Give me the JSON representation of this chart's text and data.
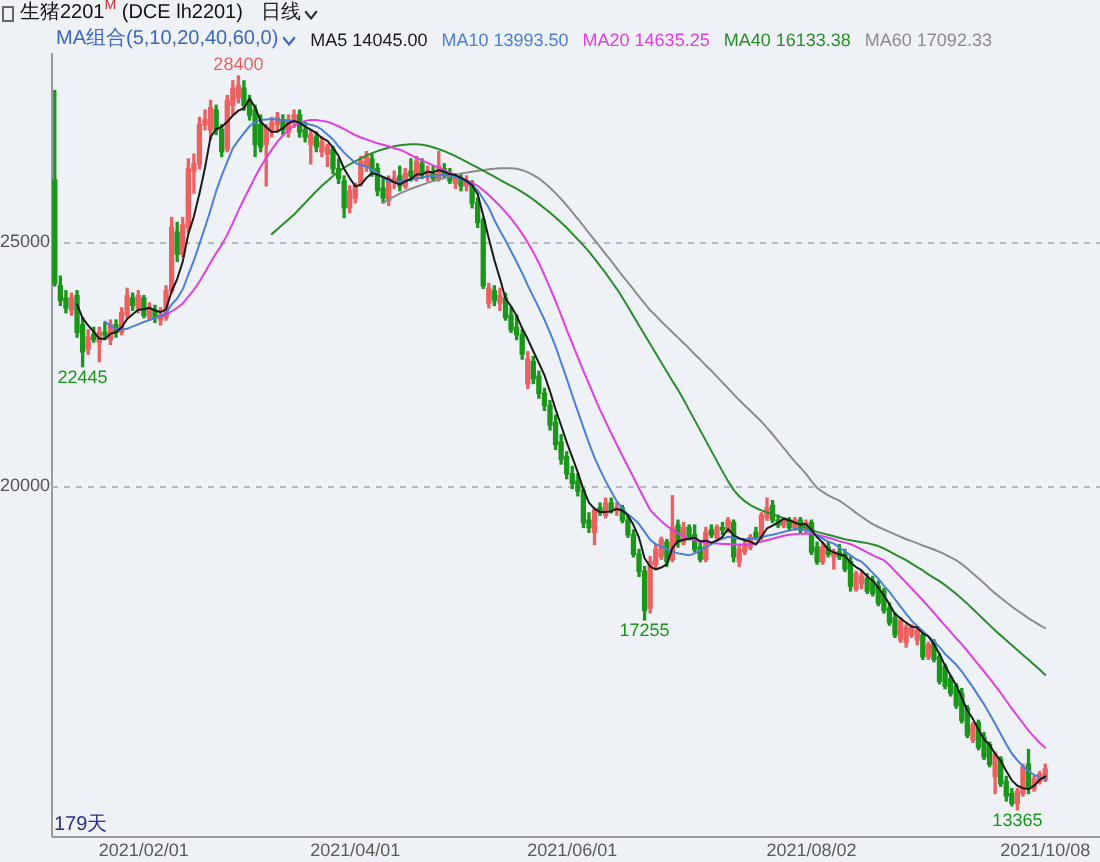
{
  "chart_data": {
    "type": "candlestick",
    "title": "生猪2201$^{M}$ (DCE lh2201)",
    "subtitle": "日线",
    "legend_title": "MA组合(5,10,20,40,60,0)",
    "legend": "top",
    "grid": "y",
    "ylim": [
      12830,
      28850
    ],
    "yticks": [
      20000,
      25000
    ],
    "categories": [
      null,
      null,
      null,
      null,
      null,
      null,
      null,
      null,
      null,
      null,
      null,
      null,
      null,
      null,
      null,
      null,
      "2021/02/01",
      null,
      null,
      null,
      null,
      null,
      null,
      null,
      null,
      null,
      null,
      null,
      null,
      null,
      null,
      null,
      null,
      null,
      null,
      null,
      null,
      null,
      null,
      null,
      null,
      null,
      null,
      null,
      null,
      null,
      null,
      null,
      null,
      null,
      null,
      null,
      null,
      null,
      "2021/04/01",
      null,
      null,
      null,
      null,
      null,
      null,
      null,
      null,
      null,
      null,
      null,
      null,
      null,
      null,
      null,
      null,
      null,
      null,
      null,
      null,
      null,
      null,
      null,
      null,
      null,
      null,
      null,
      null,
      null,
      null,
      null,
      null,
      null,
      null,
      null,
      null,
      null,
      null,
      "2021/06/01",
      null,
      null,
      null,
      null,
      null,
      null,
      null,
      null,
      null,
      null,
      null,
      null,
      null,
      null,
      null,
      null,
      null,
      null,
      null,
      null,
      null,
      null,
      null,
      null,
      null,
      null,
      null,
      null,
      null,
      null,
      null,
      null,
      null,
      null,
      null,
      null,
      null,
      null,
      null,
      null,
      null,
      null,
      "2021/08/02",
      null,
      null,
      null,
      null,
      null,
      null,
      null,
      null,
      null,
      null,
      null,
      null,
      null,
      null,
      null,
      null,
      null,
      null,
      null,
      null,
      null,
      null,
      null,
      null,
      null,
      null,
      null,
      null,
      null,
      null,
      null,
      null,
      null,
      null,
      null,
      null,
      null,
      null,
      null,
      null,
      null,
      "2021/10/08"
    ],
    "ohlc": [
      [
        26270,
        28100,
        24100,
        24150
      ],
      [
        24100,
        24300,
        23700,
        23800
      ],
      [
        23850,
        24000,
        23550,
        23650
      ],
      [
        23600,
        23950,
        23500,
        23850
      ],
      [
        23900,
        24000,
        23050,
        23150
      ],
      [
        23300,
        23450,
        22445,
        22750
      ],
      [
        22800,
        23200,
        22700,
        23050
      ],
      [
        23100,
        23250,
        22950,
        23000
      ],
      [
        22950,
        23250,
        22550,
        23150
      ],
      [
        23150,
        23350,
        23000,
        23100
      ],
      [
        23000,
        23400,
        22900,
        23300
      ],
      [
        23300,
        23400,
        23050,
        23150
      ],
      [
        23150,
        23650,
        23100,
        23550
      ],
      [
        23500,
        24050,
        23450,
        23900
      ],
      [
        23850,
        23950,
        23600,
        23700
      ],
      [
        23650,
        24000,
        23550,
        23900
      ],
      [
        23850,
        23900,
        23450,
        23500
      ],
      [
        23450,
        23750,
        23400,
        23650
      ],
      [
        23600,
        23700,
        23350,
        23450
      ],
      [
        23400,
        23650,
        23300,
        23500
      ],
      [
        23450,
        24100,
        23400,
        24000
      ],
      [
        24000,
        25500,
        23950,
        25300
      ],
      [
        25200,
        25400,
        24600,
        24750
      ],
      [
        24750,
        25500,
        24700,
        25350
      ],
      [
        25300,
        26700,
        25200,
        26500
      ],
      [
        26450,
        26800,
        26000,
        26600
      ],
      [
        26600,
        27550,
        26500,
        27400
      ],
      [
        27400,
        27700,
        27300,
        27500
      ],
      [
        27300,
        27900,
        27100,
        27750
      ],
      [
        27700,
        27800,
        27200,
        27300
      ],
      [
        27300,
        27400,
        26750,
        26850
      ],
      [
        26900,
        28000,
        26850,
        27900
      ],
      [
        27800,
        28300,
        27600,
        28150
      ],
      [
        27950,
        28400,
        27850,
        28200
      ],
      [
        28150,
        28300,
        27700,
        27800
      ],
      [
        27900,
        28000,
        27500,
        27600
      ],
      [
        27700,
        27800,
        26750,
        27000
      ],
      [
        27400,
        27600,
        26850,
        26950
      ],
      [
        27000,
        27400,
        26150,
        27350
      ],
      [
        27300,
        27550,
        27150,
        27450
      ],
      [
        27400,
        27650,
        27250,
        27550
      ],
      [
        27500,
        27600,
        27200,
        27300
      ],
      [
        27250,
        27600,
        27150,
        27500
      ],
      [
        27450,
        27700,
        27350,
        27600
      ],
      [
        27600,
        27700,
        27150,
        27250
      ],
      [
        27300,
        27450,
        27050,
        27150
      ],
      [
        27000,
        27300,
        26600,
        27200
      ],
      [
        27150,
        27250,
        26850,
        26950
      ],
      [
        26850,
        27150,
        26750,
        27050
      ],
      [
        26800,
        27000,
        26550,
        26950
      ],
      [
        26900,
        26950,
        26400,
        26500
      ],
      [
        26500,
        26700,
        26200,
        26300
      ],
      [
        26250,
        26350,
        25500,
        25700
      ],
      [
        25700,
        26150,
        25600,
        26050
      ],
      [
        25900,
        26200,
        25800,
        26150
      ],
      [
        26200,
        26750,
        26150,
        26650
      ],
      [
        26550,
        26850,
        26450,
        26750
      ],
      [
        26700,
        26800,
        26350,
        26450
      ],
      [
        26500,
        26600,
        25950,
        26050
      ],
      [
        26100,
        26300,
        25800,
        25900
      ],
      [
        25850,
        26350,
        25750,
        26250
      ],
      [
        26250,
        26450,
        26100,
        26300
      ],
      [
        26350,
        26550,
        26050,
        26150
      ],
      [
        26150,
        26500,
        26100,
        26400
      ],
      [
        26450,
        26700,
        26250,
        26350
      ],
      [
        26300,
        26750,
        26250,
        26650
      ],
      [
        26600,
        26700,
        26300,
        26400
      ],
      [
        26350,
        26550,
        26250,
        26450
      ],
      [
        26400,
        26550,
        26250,
        26300
      ],
      [
        26300,
        26850,
        26250,
        26550
      ],
      [
        26500,
        26600,
        26300,
        26400
      ],
      [
        26400,
        26500,
        26200,
        26250
      ],
      [
        26200,
        26400,
        26100,
        26350
      ],
      [
        26300,
        26400,
        26050,
        26150
      ],
      [
        26150,
        26350,
        26050,
        26250
      ],
      [
        26200,
        26250,
        25700,
        25800
      ],
      [
        25800,
        25900,
        25300,
        25400
      ],
      [
        25450,
        25500,
        24050,
        24100
      ],
      [
        23750,
        24150,
        23650,
        24050
      ],
      [
        24000,
        24100,
        23700,
        23800
      ],
      [
        23750,
        24050,
        23600,
        23900
      ],
      [
        23850,
        23950,
        23400,
        23450
      ],
      [
        23500,
        23650,
        23150,
        23200
      ],
      [
        23250,
        23500,
        23000,
        23100
      ],
      [
        23100,
        23200,
        22600,
        22700
      ],
      [
        22100,
        22750,
        22000,
        22600
      ],
      [
        22550,
        22650,
        22100,
        22200
      ],
      [
        22250,
        22350,
        21800,
        21900
      ],
      [
        21900,
        22000,
        21550,
        21650
      ],
      [
        21650,
        21750,
        21150,
        21250
      ],
      [
        21300,
        21450,
        20750,
        20850
      ],
      [
        20900,
        21050,
        20450,
        20550
      ],
      [
        20600,
        20700,
        20150,
        20250
      ],
      [
        20250,
        20400,
        19950,
        20050
      ],
      [
        20100,
        20250,
        19800,
        19900
      ],
      [
        19900,
        19950,
        19150,
        19250
      ],
      [
        19300,
        19450,
        19050,
        19150
      ],
      [
        19050,
        19550,
        18800,
        19500
      ],
      [
        19550,
        19650,
        19400,
        19450
      ],
      [
        19400,
        19750,
        19350,
        19650
      ],
      [
        19650,
        19750,
        19450,
        19500
      ],
      [
        19500,
        19650,
        19400,
        19550
      ],
      [
        19550,
        19600,
        19250,
        19300
      ],
      [
        19300,
        19400,
        18950,
        19000
      ],
      [
        19000,
        19100,
        18550,
        18600
      ],
      [
        18600,
        18700,
        18150,
        18250
      ],
      [
        18250,
        18350,
        17255,
        17450
      ],
      [
        17500,
        18550,
        17400,
        18450
      ],
      [
        18400,
        18800,
        18300,
        18700
      ],
      [
        18550,
        18950,
        18500,
        18900
      ],
      [
        18850,
        18900,
        18350,
        18450
      ],
      [
        18500,
        19800,
        18450,
        19150
      ],
      [
        19200,
        19300,
        18750,
        18850
      ],
      [
        18850,
        19250,
        18800,
        19150
      ],
      [
        19150,
        19200,
        18900,
        18950
      ],
      [
        19000,
        19200,
        18650,
        18700
      ],
      [
        18750,
        18850,
        18450,
        18500
      ],
      [
        18500,
        19150,
        18450,
        19050
      ],
      [
        19100,
        19200,
        18950,
        19000
      ],
      [
        18950,
        19200,
        18900,
        19150
      ],
      [
        19150,
        19250,
        19000,
        19100
      ],
      [
        19100,
        19350,
        19050,
        19300
      ],
      [
        19250,
        19300,
        18450,
        18550
      ],
      [
        18450,
        18800,
        18350,
        18700
      ],
      [
        18650,
        18900,
        18600,
        18800
      ],
      [
        18750,
        19000,
        18700,
        18950
      ],
      [
        19050,
        19150,
        18900,
        18950
      ],
      [
        18950,
        19450,
        18900,
        19400
      ],
      [
        19350,
        19750,
        19300,
        19550
      ],
      [
        19600,
        19700,
        19250,
        19300
      ],
      [
        19300,
        19400,
        19150,
        19200
      ],
      [
        19200,
        19350,
        19150,
        19300
      ],
      [
        19300,
        19350,
        19100,
        19150
      ],
      [
        19150,
        19350,
        19100,
        19300
      ],
      [
        19300,
        19350,
        19050,
        19100
      ],
      [
        19100,
        19300,
        19050,
        19250
      ],
      [
        19250,
        19300,
        18600,
        18650
      ],
      [
        18750,
        18850,
        18400,
        18450
      ],
      [
        18450,
        18850,
        18400,
        18750
      ],
      [
        18750,
        18850,
        18550,
        18600
      ],
      [
        18550,
        18700,
        18300,
        18650
      ],
      [
        18650,
        18800,
        18500,
        18550
      ],
      [
        18600,
        18700,
        18250,
        18300
      ],
      [
        18450,
        18550,
        17850,
        17950
      ],
      [
        17900,
        18250,
        17850,
        18200
      ],
      [
        18000,
        18250,
        17900,
        18150
      ],
      [
        18100,
        18200,
        17800,
        17850
      ],
      [
        18050,
        18150,
        17750,
        17800
      ],
      [
        17950,
        18050,
        17550,
        17600
      ],
      [
        17850,
        17900,
        17400,
        17450
      ],
      [
        17500,
        17600,
        17150,
        17200
      ],
      [
        17300,
        17400,
        16900,
        16950
      ],
      [
        16850,
        17300,
        16800,
        17250
      ],
      [
        16800,
        17150,
        16700,
        17100
      ],
      [
        16950,
        17150,
        16900,
        17100
      ],
      [
        16850,
        17100,
        16750,
        17050
      ],
      [
        16950,
        17000,
        16450,
        16500
      ],
      [
        16500,
        16800,
        16450,
        16750
      ],
      [
        16800,
        16850,
        16400,
        16450
      ],
      [
        16500,
        16550,
        15950,
        16000
      ],
      [
        16300,
        16350,
        15850,
        15900
      ],
      [
        16050,
        16100,
        15700,
        15750
      ],
      [
        15900,
        15950,
        15450,
        15500
      ],
      [
        15750,
        15850,
        15150,
        15200
      ],
      [
        15450,
        15500,
        14850,
        14900
      ],
      [
        14800,
        15150,
        14750,
        15100
      ],
      [
        15150,
        15200,
        14600,
        14650
      ],
      [
        14850,
        14950,
        14400,
        14450
      ],
      [
        14700,
        14750,
        14250,
        14300
      ],
      [
        14050,
        14550,
        13700,
        14500
      ],
      [
        14400,
        14450,
        13850,
        13900
      ],
      [
        13950,
        14050,
        13550,
        13650
      ],
      [
        13700,
        13800,
        13450,
        13500
      ],
      [
        13500,
        13800,
        13365,
        13750
      ],
      [
        13700,
        14300,
        13650,
        14250
      ],
      [
        14300,
        14600,
        13700,
        13800
      ],
      [
        13800,
        14050,
        13750,
        14000
      ],
      [
        13950,
        14150,
        13900,
        14100
      ],
      [
        14000,
        14300,
        13950,
        14200
      ]
    ],
    "colors": [
      "#1a961a",
      "#1a961a",
      "#1a961a",
      "#ee5f5f",
      "#1a961a",
      "#1a961a",
      "#ee5f5f",
      "#1a961a",
      "#ee5f5f",
      "#1a961a",
      "#ee5f5f",
      "#1a961a",
      "#ee5f5f",
      "#ee5f5f",
      "#1a961a",
      "#ee5f5f",
      "#1a961a",
      "#ee5f5f",
      "#1a961a",
      "#ee5f5f",
      "#ee5f5f",
      "#ee5f5f",
      "#1a961a",
      "#ee5f5f",
      "#ee5f5f",
      "#ee5f5f",
      "#ee5f5f",
      "#ee5f5f",
      "#ee5f5f",
      "#1a961a",
      "#1a961a",
      "#ee5f5f",
      "#ee5f5f",
      "#ee5f5f",
      "#1a961a",
      "#1a961a",
      "#1a961a",
      "#1a961a",
      "#ee5f5f",
      "#ee5f5f",
      "#ee5f5f",
      "#1a961a",
      "#ee5f5f",
      "#ee5f5f",
      "#1a961a",
      "#1a961a",
      "#ee5f5f",
      "#1a961a",
      "#ee5f5f",
      "#ee5f5f",
      "#1a961a",
      "#1a961a",
      "#1a961a",
      "#ee5f5f",
      "#ee5f5f",
      "#ee5f5f",
      "#ee5f5f",
      "#1a961a",
      "#1a961a",
      "#1a961a",
      "#ee5f5f",
      "#ee5f5f",
      "#1a961a",
      "#ee5f5f",
      "#1a961a",
      "#ee5f5f",
      "#1a961a",
      "#ee5f5f",
      "#1a961a",
      "#ee5f5f",
      "#1a961a",
      "#1a961a",
      "#ee5f5f",
      "#1a961a",
      "#ee5f5f",
      "#1a961a",
      "#1a961a",
      "#1a961a",
      "#ee5f5f",
      "#1a961a",
      "#ee5f5f",
      "#1a961a",
      "#1a961a",
      "#1a961a",
      "#1a961a",
      "#ee5f5f",
      "#1a961a",
      "#1a961a",
      "#1a961a",
      "#1a961a",
      "#1a961a",
      "#1a961a",
      "#1a961a",
      "#1a961a",
      "#1a961a",
      "#1a961a",
      "#1a961a",
      "#ee5f5f",
      "#1a961a",
      "#ee5f5f",
      "#1a961a",
      "#ee5f5f",
      "#1a961a",
      "#1a961a",
      "#1a961a",
      "#1a961a",
      "#1a961a",
      "#ee5f5f",
      "#ee5f5f",
      "#ee5f5f",
      "#1a961a",
      "#ee5f5f",
      "#1a961a",
      "#ee5f5f",
      "#1a961a",
      "#1a961a",
      "#1a961a",
      "#ee5f5f",
      "#1a961a",
      "#ee5f5f",
      "#1a961a",
      "#ee5f5f",
      "#1a961a",
      "#ee5f5f",
      "#ee5f5f",
      "#ee5f5f",
      "#1a961a",
      "#ee5f5f",
      "#ee5f5f",
      "#1a961a",
      "#1a961a",
      "#ee5f5f",
      "#1a961a",
      "#ee5f5f",
      "#1a961a",
      "#ee5f5f",
      "#1a961a",
      "#1a961a",
      "#ee5f5f",
      "#1a961a",
      "#ee5f5f",
      "#1a961a",
      "#1a961a",
      "#1a961a",
      "#ee5f5f",
      "#ee5f5f",
      "#1a961a",
      "#1a961a",
      "#1a961a",
      "#1a961a",
      "#1a961a",
      "#1a961a",
      "#ee5f5f",
      "#ee5f5f",
      "#ee5f5f",
      "#ee5f5f",
      "#1a961a",
      "#ee5f5f",
      "#1a961a",
      "#1a961a",
      "#1a961a",
      "#1a961a",
      "#1a961a",
      "#1a961a",
      "#1a961a",
      "#ee5f5f",
      "#1a961a",
      "#1a961a",
      "#1a961a",
      "#ee5f5f",
      "#1a961a",
      "#1a961a",
      "#1a961a",
      "#ee5f5f",
      "#ee5f5f",
      "#1a961a",
      "#ee5f5f",
      "#ee5f5f",
      "#ee5f5f"
    ],
    "annotations": [
      {
        "text": "28400",
        "y": 28400
      },
      {
        "text": "22445",
        "y": 22445
      },
      {
        "text": "17255",
        "y": 17255
      },
      {
        "text": "13365",
        "y": 13365
      },
      "179天"
    ],
    "series": [
      {
        "type": "line",
        "name": "MA5 14045.00",
        "color": "#1a1a1a",
        "values": [
          null,
          null,
          null,
          null,
          23720,
          23440,
          23290,
          23160,
          23020,
          23010,
          23120,
          23150,
          23250,
          23420,
          23520,
          23610,
          23620,
          23650,
          23600,
          23560,
          23620,
          23990,
          24240,
          24600,
          25160,
          25520,
          25990,
          26520,
          27150,
          27310,
          27360,
          27460,
          27590,
          27690,
          27740,
          27930,
          27760,
          27470,
          27350,
          27250,
          27260,
          27330,
          27430,
          27480,
          27440,
          27360,
          27300,
          27230,
          27130,
          27070,
          26930,
          26760,
          26500,
          26310,
          26140,
          26170,
          26310,
          26410,
          26380,
          26330,
          26290,
          26220,
          26180,
          26240,
          26290,
          26380,
          26380,
          26440,
          26430,
          26470,
          26440,
          26390,
          26370,
          26310,
          26250,
          26160,
          25980,
          25540,
          25070,
          24630,
          24250,
          23840,
          23680,
          23490,
          23230,
          23010,
          22760,
          22520,
          22270,
          21940,
          21570,
          21240,
          20900,
          20590,
          20280,
          19930,
          19660,
          19530,
          19470,
          19470,
          19480,
          19530,
          19500,
          19400,
          19200,
          18940,
          18520,
          18350,
          18290,
          18330,
          18400,
          18730,
          18870,
          18900,
          18920,
          18940,
          18870,
          18880,
          18840,
          18880,
          18960,
          19120,
          18990,
          18930,
          18890,
          18860,
          18800,
          18960,
          19130,
          19190,
          19250,
          19330,
          19300,
          19250,
          19210,
          19220,
          19100,
          18950,
          18840,
          18700,
          18640,
          18600,
          18570,
          18430,
          18340,
          18270,
          18150,
          18060,
          17920,
          17760,
          17580,
          17380,
          17290,
          17200,
          17120,
          17100,
          16980,
          16920,
          16760,
          16560,
          16320,
          16120,
          15920,
          15670,
          15400,
          15230,
          15010,
          14810,
          14700,
          14510,
          14370,
          14160,
          13970,
          13860,
          13810,
          13790,
          13860,
          13980,
          14050
        ]
      },
      {
        "type": "line",
        "name": "MA10 13993.50",
        "color": "#4a7fd6",
        "values": [
          null,
          null,
          null,
          null,
          null,
          null,
          null,
          null,
          null,
          23370,
          23280,
          23220,
          23200,
          23220,
          23270,
          23310,
          23360,
          23400,
          23440,
          23480,
          23540,
          23720,
          23840,
          24030,
          24330,
          24620,
          24960,
          25300,
          25660,
          26040,
          26360,
          26640,
          26920,
          27080,
          27230,
          27370,
          27460,
          27500,
          27510,
          27520,
          27510,
          27500,
          27490,
          27470,
          27440,
          27420,
          27400,
          27370,
          27300,
          27200,
          27100,
          26960,
          26830,
          26720,
          26620,
          26570,
          26540,
          26480,
          26400,
          26320,
          26240,
          26230,
          26240,
          26260,
          26280,
          26300,
          26320,
          26340,
          26350,
          26360,
          26370,
          26360,
          26330,
          26280,
          26230,
          26150,
          26060,
          25880,
          25700,
          25450,
          25230,
          25030,
          24810,
          24590,
          24360,
          24110,
          23880,
          23650,
          23410,
          23140,
          22860,
          22530,
          22200,
          21860,
          21530,
          21200,
          20880,
          20580,
          20330,
          20100,
          19890,
          19690,
          19540,
          19420,
          19330,
          19220,
          19060,
          18900,
          18810,
          18760,
          18700,
          18660,
          18620,
          18600,
          18580,
          18620,
          18680,
          18740,
          18810,
          18880,
          18920,
          18960,
          18940,
          18920,
          18910,
          18920,
          18930,
          18950,
          18980,
          19000,
          19030,
          19060,
          19090,
          19120,
          19110,
          19100,
          19050,
          18990,
          18920,
          18860,
          18820,
          18740,
          18660,
          18580,
          18500,
          18450,
          18340,
          18220,
          18100,
          17960,
          17830,
          17680,
          17530,
          17380,
          17240,
          17130,
          17030,
          16920,
          16820,
          16700,
          16560,
          16450,
          16340,
          16200,
          16040,
          15880,
          15700,
          15530,
          15330,
          15130,
          14920,
          14710,
          14520,
          14380,
          14260,
          14160,
          14080,
          14030,
          13990
        ]
      },
      {
        "type": "line",
        "name": "MA20 14635.25",
        "color": "#e03ee0",
        "values": [
          null,
          null,
          null,
          null,
          null,
          null,
          null,
          null,
          null,
          null,
          null,
          null,
          null,
          null,
          null,
          null,
          null,
          null,
          null,
          23470,
          23500,
          23580,
          23650,
          23740,
          23880,
          24020,
          24190,
          24380,
          24580,
          24770,
          24940,
          25150,
          25390,
          25640,
          25880,
          26100,
          26330,
          26540,
          26720,
          26890,
          27050,
          27180,
          27290,
          27380,
          27440,
          27480,
          27500,
          27500,
          27480,
          27460,
          27420,
          27370,
          27310,
          27250,
          27190,
          27140,
          27100,
          27060,
          27020,
          26990,
          26960,
          26920,
          26890,
          26840,
          26780,
          26720,
          26670,
          26620,
          26570,
          26520,
          26470,
          26420,
          26360,
          26310,
          26260,
          26210,
          26150,
          26060,
          25960,
          25850,
          25740,
          25610,
          25480,
          25330,
          25170,
          24990,
          24790,
          24570,
          24320,
          24060,
          23790,
          23500,
          23200,
          22920,
          22640,
          22360,
          22090,
          21820,
          21560,
          21320,
          21080,
          20850,
          20620,
          20400,
          20180,
          19950,
          19730,
          19510,
          19390,
          19280,
          19180,
          19100,
          19030,
          18970,
          18920,
          18890,
          18860,
          18840,
          18830,
          18820,
          18810,
          18810,
          18800,
          18800,
          18800,
          18810,
          18830,
          18860,
          18890,
          18920,
          18950,
          18980,
          19000,
          19010,
          19020,
          19020,
          19020,
          19000,
          18970,
          18940,
          18910,
          18870,
          18840,
          18810,
          18760,
          18700,
          18640,
          18580,
          18530,
          18480,
          18380,
          18260,
          18140,
          18020,
          17900,
          17780,
          17660,
          17530,
          17400,
          17270,
          17140,
          17010,
          16880,
          16760,
          16620,
          16480,
          16340,
          16200,
          16060,
          15910,
          15760,
          15600,
          15440,
          15290,
          15140,
          14990,
          14860,
          14740,
          14640
        ]
      },
      {
        "type": "line",
        "name": "MA40 16133.38",
        "color": "#2a8c2a",
        "values": [
          null,
          null,
          null,
          null,
          null,
          null,
          null,
          null,
          null,
          null,
          null,
          null,
          null,
          null,
          null,
          null,
          null,
          null,
          null,
          null,
          null,
          null,
          null,
          null,
          null,
          null,
          null,
          null,
          null,
          null,
          null,
          null,
          null,
          null,
          null,
          null,
          null,
          null,
          null,
          25160,
          25260,
          25360,
          25460,
          25560,
          25680,
          25800,
          25920,
          26040,
          26150,
          26250,
          26350,
          26440,
          26520,
          26590,
          26650,
          26710,
          26770,
          26820,
          26860,
          26900,
          26930,
          26960,
          26980,
          26990,
          27000,
          27000,
          26990,
          26970,
          26940,
          26900,
          26860,
          26810,
          26760,
          26700,
          26640,
          26580,
          26520,
          26460,
          26400,
          26340,
          26270,
          26210,
          26150,
          26090,
          26020,
          25950,
          25870,
          25780,
          25690,
          25600,
          25500,
          25400,
          25290,
          25170,
          25050,
          24930,
          24800,
          24660,
          24510,
          24360,
          24200,
          24040,
          23860,
          23670,
          23480,
          23290,
          23100,
          22910,
          22720,
          22530,
          22340,
          22150,
          21970,
          21770,
          21560,
          21350,
          21140,
          20930,
          20720,
          20510,
          20300,
          20100,
          19920,
          19790,
          19690,
          19610,
          19550,
          19500,
          19460,
          19420,
          19380,
          19340,
          19300,
          19250,
          19200,
          19150,
          19100,
          19060,
          19030,
          19000,
          18970,
          18940,
          18910,
          18890,
          18870,
          18850,
          18830,
          18800,
          18770,
          18720,
          18660,
          18600,
          18540,
          18480,
          18410,
          18340,
          18270,
          18190,
          18120,
          18050,
          17970,
          17880,
          17790,
          17690,
          17590,
          17480,
          17370,
          17260,
          17150,
          17040,
          16940,
          16840,
          16740,
          16640,
          16540,
          16440,
          16340,
          16240,
          16130
        ]
      },
      {
        "type": "line",
        "name": "MA60 17092.33",
        "color": "#8c8c8c",
        "values": [
          null,
          null,
          null,
          null,
          null,
          null,
          null,
          null,
          null,
          null,
          null,
          null,
          null,
          null,
          null,
          null,
          null,
          null,
          null,
          null,
          null,
          null,
          null,
          null,
          null,
          null,
          null,
          null,
          null,
          null,
          null,
          null,
          null,
          null,
          null,
          null,
          null,
          null,
          null,
          null,
          null,
          null,
          null,
          null,
          null,
          null,
          null,
          null,
          null,
          null,
          null,
          null,
          null,
          null,
          null,
          null,
          null,
          null,
          null,
          25800,
          25870,
          25930,
          25990,
          26040,
          26090,
          26130,
          26170,
          26210,
          26250,
          26280,
          26310,
          26340,
          26370,
          26400,
          26420,
          26440,
          26460,
          26470,
          26490,
          26500,
          26510,
          26510,
          26510,
          26500,
          26470,
          26430,
          26370,
          26300,
          26210,
          26110,
          26000,
          25880,
          25750,
          25610,
          25470,
          25330,
          25180,
          25040,
          24900,
          24750,
          24610,
          24460,
          24310,
          24170,
          24030,
          23880,
          23740,
          23600,
          23490,
          23370,
          23260,
          23150,
          23040,
          22930,
          22820,
          22700,
          22590,
          22470,
          22360,
          22240,
          22120,
          22000,
          21880,
          21760,
          21650,
          21540,
          21430,
          21320,
          21190,
          21060,
          20920,
          20780,
          20640,
          20500,
          20380,
          20250,
          20100,
          19960,
          19880,
          19810,
          19750,
          19700,
          19620,
          19540,
          19450,
          19370,
          19290,
          19220,
          19160,
          19110,
          19060,
          19010,
          18960,
          18910,
          18870,
          18830,
          18780,
          18740,
          18700,
          18650,
          18600,
          18540,
          18480,
          18400,
          18310,
          18210,
          18110,
          18010,
          17900,
          17800,
          17710,
          17620,
          17530,
          17450,
          17370,
          17290,
          17220,
          17150,
          17090
        ]
      }
    ]
  }
}
